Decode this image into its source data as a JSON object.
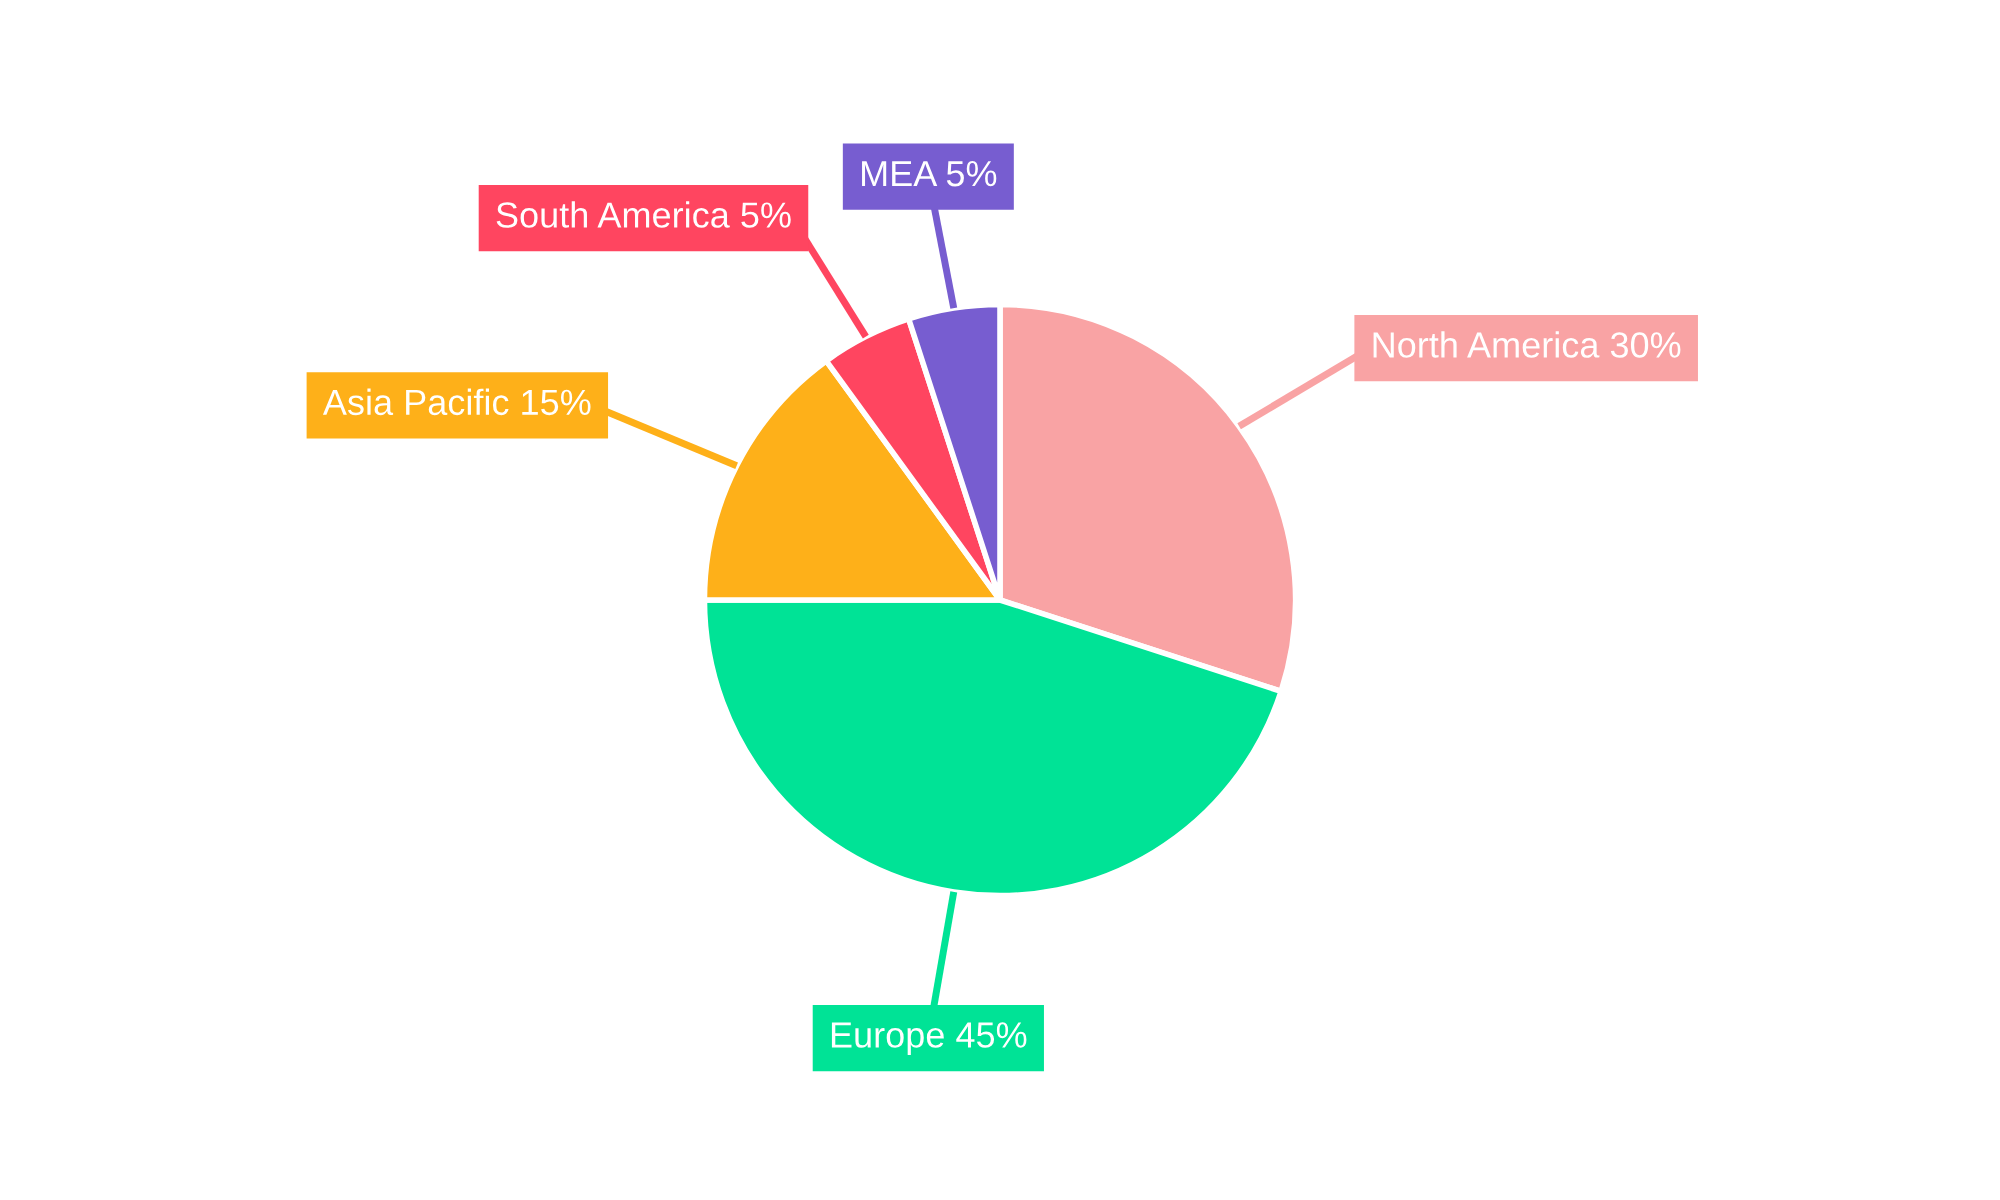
{
  "chart_data": {
    "type": "pie",
    "categories": [
      "North America",
      "Europe",
      "Asia Pacific",
      "South America",
      "MEA"
    ],
    "values": [
      30,
      45,
      15,
      5,
      5
    ],
    "value_labels": [
      "30%",
      "45%",
      "15%",
      "5%",
      "5%"
    ],
    "colors": [
      "#f9a3a4",
      "#00e396",
      "#feb019",
      "#ff4560",
      "#775dd0"
    ],
    "legend": false
  }
}
